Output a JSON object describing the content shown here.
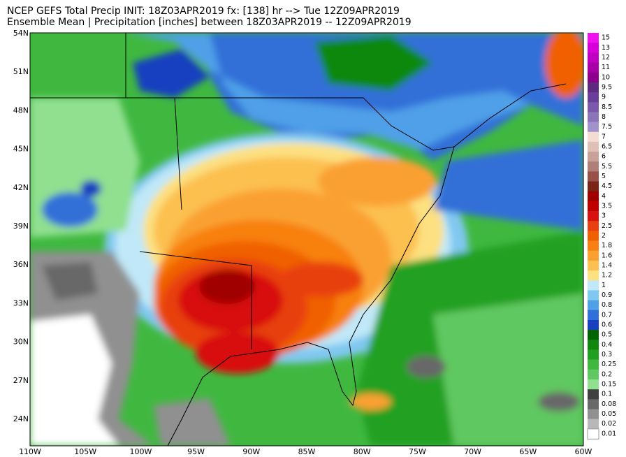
{
  "header": {
    "line1": "NCEP GEFS Total Precip INIT: 18Z03APR2019 fx: [138] hr --> Tue 12Z09APR2019",
    "line2": "Ensemble Mean | Precipitation [inches] between 18Z03APR2019 -- 12Z09APR2019"
  },
  "map": {
    "lat_labels": [
      "54N",
      "51N",
      "48N",
      "45N",
      "42N",
      "39N",
      "36N",
      "33N",
      "30N",
      "27N",
      "24N"
    ],
    "lon_labels": [
      "110W",
      "105W",
      "100W",
      "95W",
      "90W",
      "85W",
      "80W",
      "75W",
      "70W",
      "65W",
      "60W"
    ]
  },
  "colorbar": {
    "levels": [
      {
        "label": "15",
        "color": "#f010f0"
      },
      {
        "label": "13",
        "color": "#d800d8"
      },
      {
        "label": "12",
        "color": "#c000c0"
      },
      {
        "label": "11",
        "color": "#a600a6"
      },
      {
        "label": "10",
        "color": "#8c008c"
      },
      {
        "label": "9.5",
        "color": "#5e2a80"
      },
      {
        "label": "9",
        "color": "#6a3d9a"
      },
      {
        "label": "8.5",
        "color": "#7a58aa"
      },
      {
        "label": "8",
        "color": "#8c74b8"
      },
      {
        "label": "7.5",
        "color": "#a292cc"
      },
      {
        "label": "7",
        "color": "#f4dcd2"
      },
      {
        "label": "6.5",
        "color": "#e0c0b6"
      },
      {
        "label": "6",
        "color": "#c8a298"
      },
      {
        "label": "5.5",
        "color": "#b08078"
      },
      {
        "label": "5",
        "color": "#985048"
      },
      {
        "label": "4.5",
        "color": "#7a2418"
      },
      {
        "label": "4",
        "color": "#a00000"
      },
      {
        "label": "3.5",
        "color": "#c00000"
      },
      {
        "label": "3",
        "color": "#d81010"
      },
      {
        "label": "2.5",
        "color": "#e84010"
      },
      {
        "label": "2",
        "color": "#f06000"
      },
      {
        "label": "1.8",
        "color": "#f88010"
      },
      {
        "label": "1.6",
        "color": "#faa030"
      },
      {
        "label": "1.4",
        "color": "#fcc050"
      },
      {
        "label": "1.2",
        "color": "#fde080"
      },
      {
        "label": "1",
        "color": "#c0e8f8"
      },
      {
        "label": "0.9",
        "color": "#80c8f0"
      },
      {
        "label": "0.8",
        "color": "#50a0e8"
      },
      {
        "label": "0.7",
        "color": "#3070d8"
      },
      {
        "label": "0.6",
        "color": "#1840c0"
      },
      {
        "label": "0.5",
        "color": "#006400"
      },
      {
        "label": "0.4",
        "color": "#108810"
      },
      {
        "label": "0.3",
        "color": "#20a020"
      },
      {
        "label": "0.25",
        "color": "#40b840"
      },
      {
        "label": "0.2",
        "color": "#60c860"
      },
      {
        "label": "0.15",
        "color": "#90e090"
      },
      {
        "label": "0.1",
        "color": "#404040"
      },
      {
        "label": "0.08",
        "color": "#686868"
      },
      {
        "label": "0.05",
        "color": "#909090"
      },
      {
        "label": "0.02",
        "color": "#b8b8b8"
      },
      {
        "label": "0.01",
        "color": "#ffffff"
      }
    ]
  }
}
